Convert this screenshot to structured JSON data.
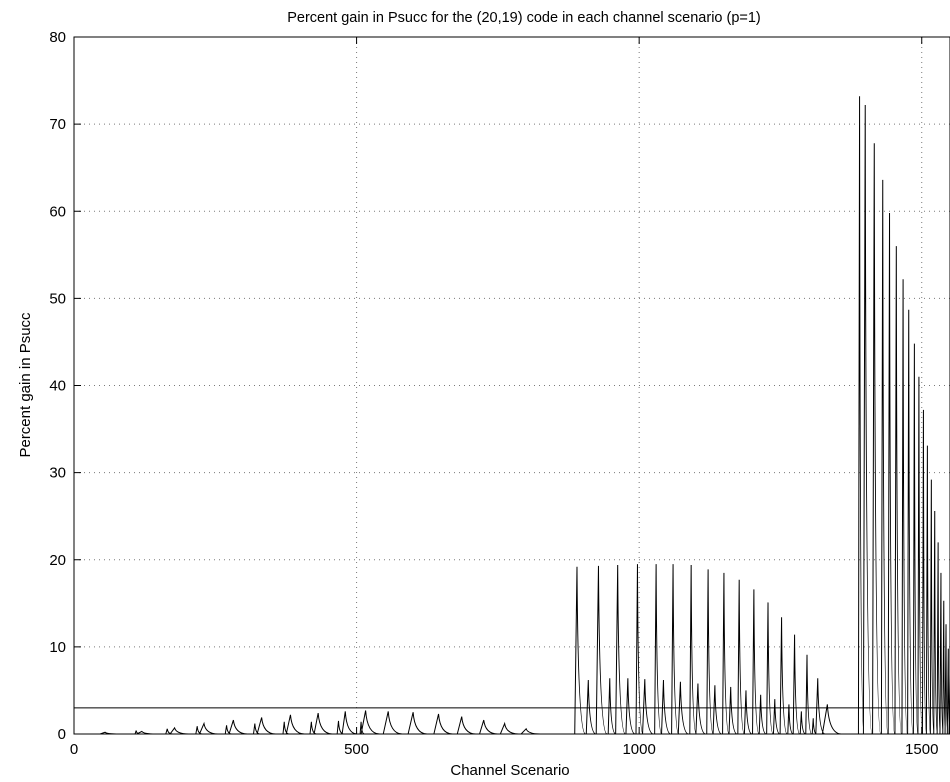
{
  "chart_data": {
    "type": "line",
    "title": "Percent gain in Psucc for the (20,19) code in each channel scenario (p=1)",
    "xlabel": "Channel Scenario",
    "ylabel": "Percent gain in Psucc",
    "xlim": [
      0,
      1550
    ],
    "ylim": [
      0,
      80
    ],
    "xticks": [
      0,
      500,
      1000,
      1500
    ],
    "yticks": [
      0,
      10,
      20,
      30,
      40,
      50,
      60,
      70,
      80
    ],
    "grid": true,
    "reference_line": {
      "y": 3,
      "color": "#000000"
    },
    "series": [
      {
        "color": "#000000",
        "spikes": [
          {
            "x": 55,
            "y": 0.2
          },
          {
            "x": 110,
            "y": 0.4
          },
          {
            "x": 120,
            "y": 0.3
          },
          {
            "x": 165,
            "y": 0.6
          },
          {
            "x": 178,
            "y": 0.7
          },
          {
            "x": 218,
            "y": 0.9
          },
          {
            "x": 230,
            "y": 1.2
          },
          {
            "x": 270,
            "y": 1.0
          },
          {
            "x": 282,
            "y": 1.6
          },
          {
            "x": 320,
            "y": 1.2
          },
          {
            "x": 332,
            "y": 1.9
          },
          {
            "x": 372,
            "y": 1.4
          },
          {
            "x": 383,
            "y": 2.2
          },
          {
            "x": 420,
            "y": 1.4
          },
          {
            "x": 432,
            "y": 2.4
          },
          {
            "x": 468,
            "y": 1.5
          },
          {
            "x": 480,
            "y": 2.6
          },
          {
            "x": 508,
            "y": 1.4
          },
          {
            "x": 516,
            "y": 2.7
          },
          {
            "x": 556,
            "y": 2.6
          },
          {
            "x": 600,
            "y": 2.5
          },
          {
            "x": 645,
            "y": 2.3
          },
          {
            "x": 686,
            "y": 2.0
          },
          {
            "x": 725,
            "y": 1.6
          },
          {
            "x": 762,
            "y": 1.2
          },
          {
            "x": 800,
            "y": 0.6
          },
          {
            "x": 890,
            "y": 19.2
          },
          {
            "x": 910,
            "y": 6.2
          },
          {
            "x": 928,
            "y": 19.3
          },
          {
            "x": 948,
            "y": 6.4
          },
          {
            "x": 962,
            "y": 19.4
          },
          {
            "x": 980,
            "y": 6.4
          },
          {
            "x": 997,
            "y": 19.5
          },
          {
            "x": 1010,
            "y": 6.3
          },
          {
            "x": 1030,
            "y": 19.5
          },
          {
            "x": 1043,
            "y": 6.2
          },
          {
            "x": 1060,
            "y": 19.5
          },
          {
            "x": 1073,
            "y": 6.0
          },
          {
            "x": 1092,
            "y": 19.4
          },
          {
            "x": 1104,
            "y": 5.8
          },
          {
            "x": 1122,
            "y": 18.9
          },
          {
            "x": 1134,
            "y": 5.6
          },
          {
            "x": 1150,
            "y": 18.5
          },
          {
            "x": 1162,
            "y": 5.4
          },
          {
            "x": 1177,
            "y": 17.7
          },
          {
            "x": 1189,
            "y": 5.0
          },
          {
            "x": 1203,
            "y": 16.6
          },
          {
            "x": 1215,
            "y": 4.5
          },
          {
            "x": 1228,
            "y": 15.1
          },
          {
            "x": 1240,
            "y": 4.0
          },
          {
            "x": 1252,
            "y": 13.4
          },
          {
            "x": 1265,
            "y": 3.4
          },
          {
            "x": 1275,
            "y": 11.4
          },
          {
            "x": 1287,
            "y": 2.6
          },
          {
            "x": 1297,
            "y": 9.1
          },
          {
            "x": 1308,
            "y": 1.8
          },
          {
            "x": 1316,
            "y": 6.4
          },
          {
            "x": 1333,
            "y": 3.4
          },
          {
            "x": 1390,
            "y": 73.2
          },
          {
            "x": 1400,
            "y": 72.2
          },
          {
            "x": 1416,
            "y": 67.8
          },
          {
            "x": 1431,
            "y": 63.6
          },
          {
            "x": 1443,
            "y": 59.8
          },
          {
            "x": 1455,
            "y": 56.0
          },
          {
            "x": 1467,
            "y": 52.2
          },
          {
            "x": 1477,
            "y": 48.7
          },
          {
            "x": 1487,
            "y": 44.8
          },
          {
            "x": 1495,
            "y": 41.0
          },
          {
            "x": 1503,
            "y": 37.2
          },
          {
            "x": 1510,
            "y": 33.1
          },
          {
            "x": 1517,
            "y": 29.2
          },
          {
            "x": 1523,
            "y": 25.6
          },
          {
            "x": 1529,
            "y": 22.0
          },
          {
            "x": 1534,
            "y": 18.5
          },
          {
            "x": 1539,
            "y": 15.3
          },
          {
            "x": 1543,
            "y": 12.6
          },
          {
            "x": 1547,
            "y": 9.8
          },
          {
            "x": 1550,
            "y": 6.8
          }
        ]
      }
    ]
  }
}
